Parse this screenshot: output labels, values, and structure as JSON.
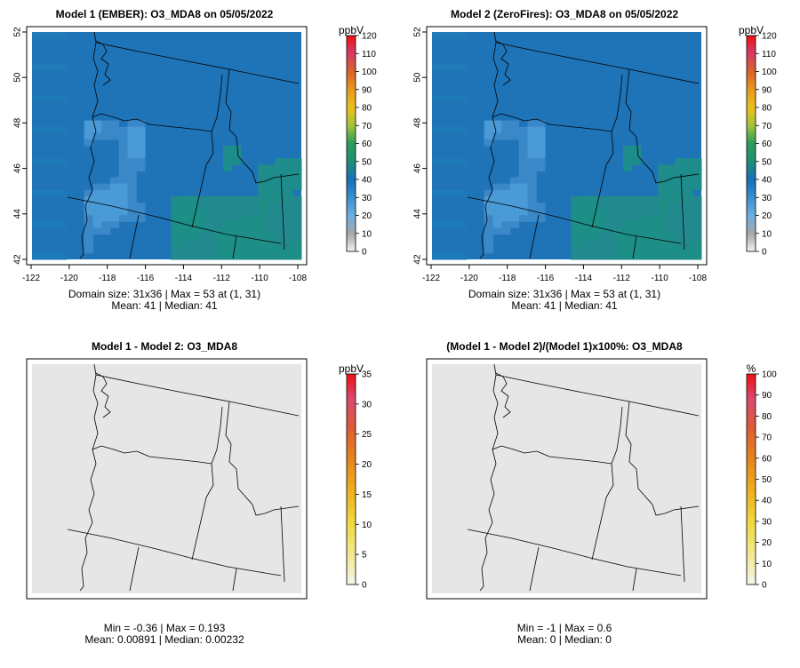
{
  "panels": [
    {
      "title": "Model 1 (EMBER): O3_MDA8 on 05/05/2022",
      "stat_line1": "Domain size: 31x36 | Max = 53 at (1, 31)",
      "stat_line2": "Mean: 41 |  Median: 41",
      "unit": "ppbV",
      "legend_ticks": [
        "120",
        "110",
        "100",
        "90",
        "80",
        "70",
        "60",
        "50",
        "40",
        "30",
        "20",
        "10",
        "0"
      ],
      "axes": true
    },
    {
      "title": "Model 2 (ZeroFires): O3_MDA8 on 05/05/2022",
      "stat_line1": "Domain size: 31x36 | Max = 53 at (1, 31)",
      "stat_line2": "Mean: 41 |  Median: 41",
      "unit": "ppbV",
      "legend_ticks": [
        "120",
        "110",
        "100",
        "90",
        "80",
        "70",
        "60",
        "50",
        "40",
        "30",
        "20",
        "10",
        "0"
      ],
      "axes": true
    },
    {
      "title": "Model 1 - Model 2: O3_MDA8",
      "stat_line1": "Min = -0.36 | Max = 0.193",
      "stat_line2": "Mean: 0.00891 |  Median: 0.00232",
      "unit": "ppbV",
      "legend_ticks": [
        "35",
        "30",
        "25",
        "20",
        "15",
        "10",
        "5",
        "0"
      ],
      "axes": false
    },
    {
      "title": "(Model 1 - Model 2)/(Model 1)x100%: O3_MDA8",
      "stat_line1": "Min = -1 | Max = 0.6",
      "stat_line2": "Mean: 0 |  Median: 0",
      "unit": "%",
      "legend_ticks": [
        "100",
        "90",
        "80",
        "70",
        "60",
        "50",
        "40",
        "30",
        "20",
        "10",
        "0"
      ],
      "axes": false
    }
  ],
  "x_ticks": [
    "-122",
    "-120",
    "-118",
    "-116",
    "-114",
    "-112",
    "-110",
    "-108"
  ],
  "y_ticks": [
    "52",
    "50",
    "48",
    "46",
    "44",
    "42"
  ],
  "colors": {
    "field_ocean": "#1f74b8",
    "field_land_dark": "#1e6fb0",
    "field_cool": "#3f8fcf",
    "field_warm": "#1e8f87",
    "diff_fill": "#e6e6e6"
  }
}
